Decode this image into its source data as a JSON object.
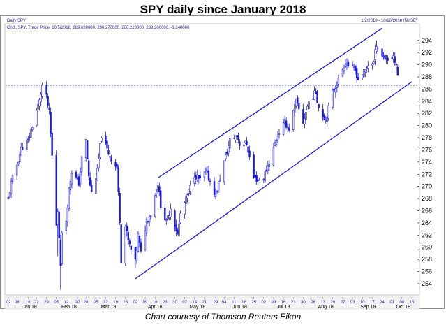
{
  "title": "SPY daily since January 2018",
  "caption": "Chart courtesy of Thomson Reuters Eikon",
  "panel_label": "Daily SPY",
  "legend_text": "Cndl, SPY, Trade Price, 10/5/2018, 289.690000, 290.270000, 286.220000, 288.200000, -1.240000",
  "date_range_text": "1/2/2018 - 10/16/2018 (NYSE)",
  "colors": {
    "candles": "#1a1ad8",
    "trendlines": "#1a1ad8",
    "reference_line": "#5a7bd6",
    "text_blue": "#1a1aa0"
  },
  "chart_data": {
    "type": "candlestick",
    "ylim": [
      252.5,
      296.5
    ],
    "yticks": [
      254,
      256,
      258,
      260,
      262,
      264,
      266,
      268,
      270,
      272,
      274,
      276,
      278,
      280,
      282,
      284,
      286,
      288,
      290,
      292,
      294
    ],
    "x_day_labels": [
      "02",
      "08",
      "16",
      "22",
      "29",
      "05",
      "12",
      "20",
      "26",
      "05",
      "12",
      "19",
      "26",
      "02",
      "09",
      "16",
      "23",
      "30",
      "07",
      "14",
      "21",
      "29",
      "04",
      "11",
      "18",
      "25",
      "02",
      "09",
      "16",
      "23",
      "30",
      "06",
      "13",
      "20",
      "27",
      "03",
      "10",
      "17",
      "24",
      "01",
      "08",
      "15"
    ],
    "x_month_labels": [
      "Jan 18",
      "Feb 18",
      "Mar 18",
      "Apr 18",
      "May 18",
      "Jun 18",
      "Jul 18",
      "Aug 18",
      "Sep 18",
      "Oct 18"
    ],
    "horizontal_reference": 286.6,
    "upper_trendline": [
      {
        "date": "2018-04-18",
        "y": 271.4
      },
      {
        "date": "2018-09-24",
        "y": 296.0
      }
    ],
    "lower_trendline": [
      {
        "date": "2018-04-02",
        "y": 254.8
      },
      {
        "date": "2018-10-15",
        "y": 287.2
      }
    ],
    "close_path": [
      {
        "date": "2018-01-02",
        "c": 268.0
      },
      {
        "date": "2018-01-04",
        "c": 270.5
      },
      {
        "date": "2018-01-08",
        "c": 273.5
      },
      {
        "date": "2018-01-11",
        "c": 276.2
      },
      {
        "date": "2018-01-16",
        "c": 277.5
      },
      {
        "date": "2018-01-19",
        "c": 280.0
      },
      {
        "date": "2018-01-22",
        "c": 282.5
      },
      {
        "date": "2018-01-24",
        "c": 284.0
      },
      {
        "date": "2018-01-26",
        "c": 286.6
      },
      {
        "date": "2018-01-29",
        "c": 284.6
      },
      {
        "date": "2018-01-31",
        "c": 282.0
      },
      {
        "date": "2018-02-02",
        "c": 275.0
      },
      {
        "date": "2018-02-05",
        "c": 263.5
      },
      {
        "date": "2018-02-06",
        "c": 266.0
      },
      {
        "date": "2018-02-08",
        "c": 257.5
      },
      {
        "date": "2018-02-09",
        "c": 262.0
      },
      {
        "date": "2018-02-12",
        "c": 264.5
      },
      {
        "date": "2018-02-14",
        "c": 269.5
      },
      {
        "date": "2018-02-16",
        "c": 272.5
      },
      {
        "date": "2018-02-21",
        "c": 270.5
      },
      {
        "date": "2018-02-23",
        "c": 274.5
      },
      {
        "date": "2018-02-26",
        "c": 277.5
      },
      {
        "date": "2018-02-28",
        "c": 271.5
      },
      {
        "date": "2018-03-02",
        "c": 269.0
      },
      {
        "date": "2018-03-06",
        "c": 272.5
      },
      {
        "date": "2018-03-09",
        "c": 278.5
      },
      {
        "date": "2018-03-13",
        "c": 276.0
      },
      {
        "date": "2018-03-16",
        "c": 274.5
      },
      {
        "date": "2018-03-20",
        "c": 273.0
      },
      {
        "date": "2018-03-22",
        "c": 264.5
      },
      {
        "date": "2018-03-23",
        "c": 258.0
      },
      {
        "date": "2018-03-26",
        "c": 263.5
      },
      {
        "date": "2018-03-28",
        "c": 261.0
      },
      {
        "date": "2018-04-02",
        "c": 257.5
      },
      {
        "date": "2018-04-04",
        "c": 262.0
      },
      {
        "date": "2018-04-06",
        "c": 259.0
      },
      {
        "date": "2018-04-10",
        "c": 264.5
      },
      {
        "date": "2018-04-13",
        "c": 265.5
      },
      {
        "date": "2018-04-18",
        "c": 270.5
      },
      {
        "date": "2018-04-20",
        "c": 267.0
      },
      {
        "date": "2018-04-24",
        "c": 264.0
      },
      {
        "date": "2018-04-27",
        "c": 266.5
      },
      {
        "date": "2018-05-02",
        "c": 262.0
      },
      {
        "date": "2018-05-04",
        "c": 265.5
      },
      {
        "date": "2018-05-09",
        "c": 268.5
      },
      {
        "date": "2018-05-14",
        "c": 272.0
      },
      {
        "date": "2018-05-18",
        "c": 271.0
      },
      {
        "date": "2018-05-22",
        "c": 272.5
      },
      {
        "date": "2018-05-29",
        "c": 268.5
      },
      {
        "date": "2018-05-31",
        "c": 270.5
      },
      {
        "date": "2018-06-04",
        "c": 274.0
      },
      {
        "date": "2018-06-08",
        "c": 277.5
      },
      {
        "date": "2018-06-13",
        "c": 278.5
      },
      {
        "date": "2018-06-15",
        "c": 277.0
      },
      {
        "date": "2018-06-20",
        "c": 277.0
      },
      {
        "date": "2018-06-25",
        "c": 271.5
      },
      {
        "date": "2018-06-28",
        "c": 271.0
      },
      {
        "date": "2018-07-02",
        "c": 271.5
      },
      {
        "date": "2018-07-06",
        "c": 274.0
      },
      {
        "date": "2018-07-12",
        "c": 278.5
      },
      {
        "date": "2018-07-17",
        "c": 280.5
      },
      {
        "date": "2018-07-20",
        "c": 279.5
      },
      {
        "date": "2018-07-25",
        "c": 284.0
      },
      {
        "date": "2018-07-30",
        "c": 280.5
      },
      {
        "date": "2018-08-03",
        "c": 284.0
      },
      {
        "date": "2018-08-08",
        "c": 285.5
      },
      {
        "date": "2018-08-10",
        "c": 283.0
      },
      {
        "date": "2018-08-15",
        "c": 281.0
      },
      {
        "date": "2018-08-20",
        "c": 285.5
      },
      {
        "date": "2018-08-24",
        "c": 287.5
      },
      {
        "date": "2018-08-29",
        "c": 290.5
      },
      {
        "date": "2018-08-31",
        "c": 290.0
      },
      {
        "date": "2018-09-05",
        "c": 289.0
      },
      {
        "date": "2018-09-07",
        "c": 287.6
      },
      {
        "date": "2018-09-12",
        "c": 289.0
      },
      {
        "date": "2018-09-14",
        "c": 290.0
      },
      {
        "date": "2018-09-18",
        "c": 290.5
      },
      {
        "date": "2018-09-20",
        "c": 293.5
      },
      {
        "date": "2018-09-24",
        "c": 291.5
      },
      {
        "date": "2018-09-28",
        "c": 290.8
      },
      {
        "date": "2018-10-02",
        "c": 291.5
      },
      {
        "date": "2018-10-04",
        "c": 289.5
      },
      {
        "date": "2018-10-05",
        "c": 288.2
      }
    ]
  }
}
